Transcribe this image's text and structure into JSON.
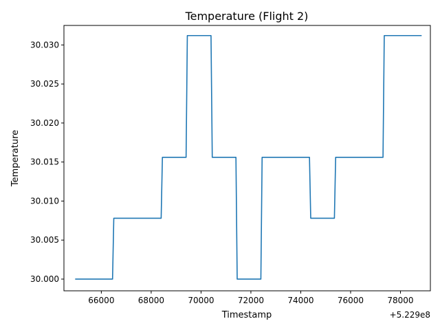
{
  "chart_data": {
    "type": "line",
    "title": "Temperature (Flight 2)",
    "xlabel": "Timestamp",
    "ylabel": "Temperature",
    "x_offset_label": "+5.229e8",
    "xlim": [
      64500,
      79200
    ],
    "ylim": [
      29.9985,
      30.0325
    ],
    "grid": false,
    "line_color": "#1f77b4",
    "x_ticks": [
      {
        "value": 66000,
        "label": "66000"
      },
      {
        "value": 68000,
        "label": "68000"
      },
      {
        "value": 70000,
        "label": "70000"
      },
      {
        "value": 72000,
        "label": "72000"
      },
      {
        "value": 74000,
        "label": "74000"
      },
      {
        "value": 76000,
        "label": "76000"
      },
      {
        "value": 78000,
        "label": "78000"
      }
    ],
    "y_ticks": [
      {
        "value": 30.0,
        "label": "30.000"
      },
      {
        "value": 30.005,
        "label": "30.005"
      },
      {
        "value": 30.01,
        "label": "30.010"
      },
      {
        "value": 30.015,
        "label": "30.015"
      },
      {
        "value": 30.02,
        "label": "30.020"
      },
      {
        "value": 30.025,
        "label": "30.025"
      },
      {
        "value": 30.03,
        "label": "30.030"
      }
    ],
    "series": [
      {
        "x": [
          64950,
          66450,
          66500,
          68400,
          68450,
          69400,
          69450,
          70400,
          70450,
          71400,
          71450,
          72400,
          72450,
          74350,
          74400,
          75350,
          75400,
          77300,
          77350,
          78850
        ],
        "y": [
          30.0,
          30.0,
          30.0078,
          30.0078,
          30.0156,
          30.0156,
          30.0312,
          30.0312,
          30.0156,
          30.0156,
          30.0,
          30.0,
          30.0156,
          30.0156,
          30.0078,
          30.0078,
          30.0156,
          30.0156,
          30.0312,
          30.0312
        ]
      }
    ]
  }
}
